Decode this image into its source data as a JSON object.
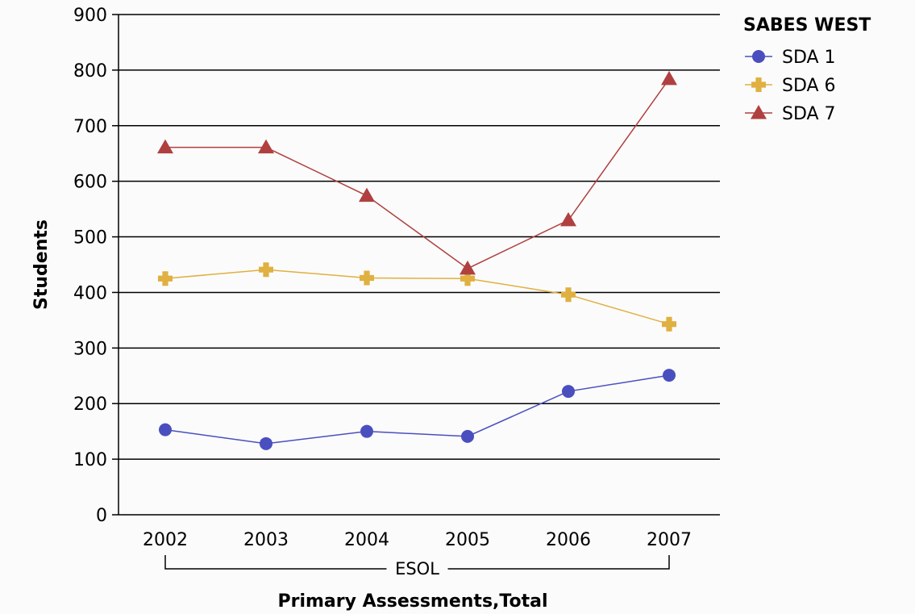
{
  "chart_data": {
    "type": "line",
    "x": [
      "2002",
      "2003",
      "2004",
      "2005",
      "2006",
      "2007"
    ],
    "group_label": "ESOL",
    "xlabel": "Primary Assessments,Total",
    "ylabel": "Students",
    "ylim": [
      0,
      900
    ],
    "yticks": [
      0,
      100,
      200,
      300,
      400,
      500,
      600,
      700,
      800,
      900
    ],
    "grid": true,
    "legend": {
      "title": "SABES WEST",
      "position": "top-right"
    },
    "series": [
      {
        "name": "SDA 1",
        "color": "#4a4fbf",
        "marker": "circle",
        "values": [
          153,
          128,
          150,
          141,
          222,
          251
        ]
      },
      {
        "name": "SDA 6",
        "color": "#e0b040",
        "marker": "cross",
        "values": [
          425,
          441,
          426,
          425,
          396,
          343
        ]
      },
      {
        "name": "SDA 7",
        "color": "#b04040",
        "marker": "triangle",
        "values": [
          661,
          661,
          574,
          443,
          530,
          784
        ]
      }
    ]
  }
}
